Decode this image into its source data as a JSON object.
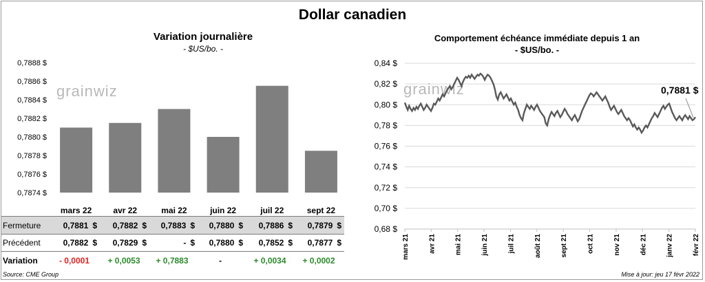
{
  "title": "Dollar canadien",
  "left_chart": {
    "title": "Variation  journalière",
    "subtitle": "- $US/bo. -",
    "watermark": "grainwiz"
  },
  "right_chart": {
    "title": "Comportement échéance immédiate depuis 1 an",
    "subtitle": "- $US/bo. -",
    "last_label": "0,7881 $",
    "watermark": "grainwiz"
  },
  "table": {
    "rows": [
      {
        "label": "Fermeture",
        "cells": [
          {
            "value": "0,7881",
            "cur": "$"
          },
          {
            "value": "0,7882",
            "cur": "$"
          },
          {
            "value": "0,7883",
            "cur": "$"
          },
          {
            "value": "0,7880",
            "cur": "$"
          },
          {
            "value": "0,7886",
            "cur": "$"
          },
          {
            "value": "0,7879",
            "cur": "$"
          }
        ]
      },
      {
        "label": "Précédent",
        "cells": [
          {
            "value": "0,7882",
            "cur": "$"
          },
          {
            "value": "0,7829",
            "cur": "$"
          },
          {
            "value": "-",
            "cur": "$"
          },
          {
            "value": "0,7880",
            "cur": "$"
          },
          {
            "value": "0,7852",
            "cur": "$"
          },
          {
            "value": "0,7877",
            "cur": "$"
          }
        ]
      },
      {
        "label": "Variation",
        "cells": [
          {
            "value": "- 0,0001",
            "cur": ""
          },
          {
            "value": "+ 0,0053",
            "cur": ""
          },
          {
            "value": "+ 0,7883",
            "cur": ""
          },
          {
            "value": "-",
            "cur": ""
          },
          {
            "value": "+ 0,0034",
            "cur": ""
          },
          {
            "value": "+ 0,0002",
            "cur": ""
          }
        ]
      }
    ]
  },
  "footer": {
    "source": "Source: CME Group",
    "updated": "Mise à jour: jeu 17 févr 2022"
  },
  "colors": {
    "bar": "#7f7f7f",
    "line": "#595959",
    "grid": "#d9d9d9",
    "negative": "#e02020",
    "positive": "#2a8a2a"
  },
  "chart_data": [
    {
      "type": "bar",
      "categories": [
        "mars 22",
        "avr 22",
        "mai 22",
        "juin 22",
        "juil 22",
        "sept 22"
      ],
      "values": [
        0.7881,
        0.78815,
        0.7883,
        0.788,
        0.78855,
        0.78785
      ],
      "ylim": [
        0.7874,
        0.7888
      ],
      "yticks": [
        "0,7874 $",
        "0,7876 $",
        "0,7878 $",
        "0,7880 $",
        "0,7882 $",
        "0,7884 $",
        "0,7886 $",
        "0,7888 $"
      ],
      "grid": false
    },
    {
      "type": "line",
      "x_range": [
        "mars 21",
        "févr 22"
      ],
      "xticks": [
        "mars 21",
        "avr 21",
        "mai 21",
        "juin 21",
        "juil 21",
        "août 21",
        "sept 21",
        "oct 21",
        "nov 21",
        "déc 21",
        "janv 22",
        "févr 22"
      ],
      "ylim": [
        0.68,
        0.84
      ],
      "yticks": [
        "0,68 $",
        "0,70 $",
        "0,72 $",
        "0,74 $",
        "0,76 $",
        "0,78 $",
        "0,80 $",
        "0,82 $",
        "0,84 $"
      ],
      "grid": true,
      "values": [
        0.802,
        0.798,
        0.795,
        0.799,
        0.796,
        0.794,
        0.797,
        0.795,
        0.798,
        0.796,
        0.799,
        0.801,
        0.798,
        0.795,
        0.797,
        0.8,
        0.798,
        0.796,
        0.794,
        0.797,
        0.801,
        0.8,
        0.803,
        0.806,
        0.804,
        0.807,
        0.81,
        0.808,
        0.811,
        0.814,
        0.816,
        0.818,
        0.815,
        0.817,
        0.82,
        0.823,
        0.826,
        0.824,
        0.821,
        0.818,
        0.822,
        0.825,
        0.827,
        0.826,
        0.828,
        0.826,
        0.829,
        0.827,
        0.825,
        0.827,
        0.829,
        0.828,
        0.83,
        0.829,
        0.827,
        0.824,
        0.827,
        0.829,
        0.828,
        0.826,
        0.823,
        0.82,
        0.815,
        0.808,
        0.805,
        0.81,
        0.812,
        0.809,
        0.806,
        0.808,
        0.81,
        0.807,
        0.804,
        0.806,
        0.803,
        0.8,
        0.802,
        0.798,
        0.795,
        0.79,
        0.787,
        0.785,
        0.792,
        0.796,
        0.8,
        0.798,
        0.796,
        0.799,
        0.797,
        0.795,
        0.798,
        0.8,
        0.797,
        0.794,
        0.792,
        0.79,
        0.788,
        0.782,
        0.78,
        0.786,
        0.79,
        0.793,
        0.791,
        0.789,
        0.792,
        0.794,
        0.791,
        0.788,
        0.79,
        0.793,
        0.796,
        0.794,
        0.791,
        0.789,
        0.787,
        0.785,
        0.788,
        0.79,
        0.787,
        0.784,
        0.786,
        0.79,
        0.794,
        0.797,
        0.8,
        0.803,
        0.806,
        0.809,
        0.811,
        0.81,
        0.808,
        0.81,
        0.812,
        0.81,
        0.808,
        0.806,
        0.804,
        0.806,
        0.808,
        0.805,
        0.802,
        0.798,
        0.795,
        0.797,
        0.799,
        0.796,
        0.793,
        0.791,
        0.793,
        0.795,
        0.792,
        0.789,
        0.787,
        0.785,
        0.787,
        0.785,
        0.782,
        0.779,
        0.781,
        0.778,
        0.776,
        0.778,
        0.776,
        0.773,
        0.775,
        0.778,
        0.78,
        0.778,
        0.781,
        0.784,
        0.787,
        0.789,
        0.792,
        0.79,
        0.788,
        0.791,
        0.794,
        0.797,
        0.799,
        0.796,
        0.798,
        0.8,
        0.801,
        0.797,
        0.793,
        0.79,
        0.787,
        0.785,
        0.787,
        0.789,
        0.787,
        0.785,
        0.788,
        0.79,
        0.788,
        0.786,
        0.789,
        0.787,
        0.785,
        0.786,
        0.788
      ]
    }
  ]
}
